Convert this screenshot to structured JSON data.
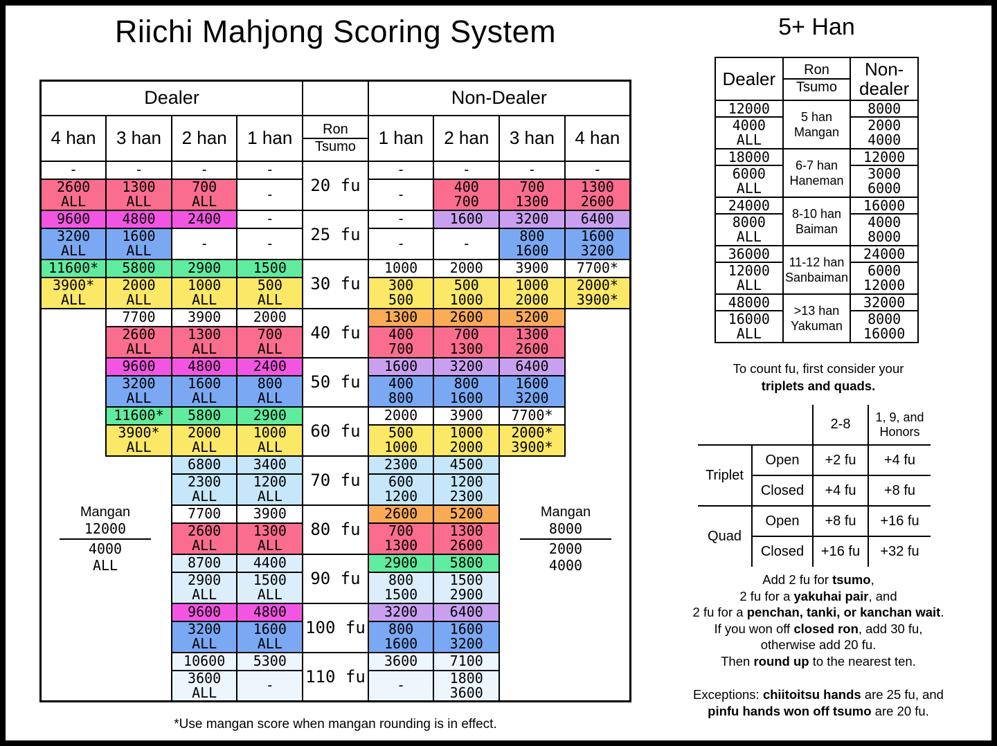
{
  "title": "Riichi Mahjong Scoring System",
  "footnote": "*Use mangan score when mangan rounding is in effect.",
  "colors": {
    "pink": "#FA6D8E",
    "magenta": "#F355E3",
    "blue": "#7AA8F3",
    "green": "#5FEC9E",
    "yellow": "#FAE866",
    "purple": "#C9A0F0",
    "orange": "#FAAB55",
    "lblue1": "#C6E6FA",
    "lblue2": "#DCEEFB",
    "lblue3": "#EDF5FD"
  },
  "main_table": {
    "dealer_header": "Dealer",
    "nondealer_header": "Non-Dealer",
    "ron_label": "Ron",
    "tsumo_label": "Tsumo",
    "dealer_cols": [
      "4 han",
      "3 han",
      "2 han",
      "1 han"
    ],
    "nondealer_cols": [
      "1 han",
      "2 han",
      "3 han",
      "4 han"
    ],
    "dealer_mangan": {
      "title": "Mangan",
      "ron": "12000",
      "t1": "4000",
      "t2": "ALL"
    },
    "nd_mangan": {
      "title": "Mangan",
      "ron": "8000",
      "t1": "2000",
      "t2": "4000"
    },
    "blocks": [
      {
        "fu": "20 fu",
        "d_ron": [
          {
            "t": "-"
          },
          {
            "t": "-"
          },
          {
            "t": "-"
          },
          {
            "t": "-"
          }
        ],
        "d_tsu": [
          {
            "t": "2600\nALL",
            "c": "pink"
          },
          {
            "t": "1300\nALL",
            "c": "pink"
          },
          {
            "t": "700\nALL",
            "c": "pink"
          },
          {
            "t": "-"
          }
        ],
        "n_ron": [
          {
            "t": "-"
          },
          {
            "t": "-"
          },
          {
            "t": "-"
          },
          {
            "t": "-"
          }
        ],
        "n_tsu": [
          {
            "t": "-"
          },
          {
            "t": "400\n700",
            "c": "pink"
          },
          {
            "t": "700\n1300",
            "c": "pink"
          },
          {
            "t": "1300\n2600",
            "c": "pink"
          }
        ]
      },
      {
        "fu": "25 fu",
        "d_ron": [
          {
            "t": "9600",
            "c": "magenta"
          },
          {
            "t": "4800",
            "c": "magenta"
          },
          {
            "t": "2400",
            "c": "magenta"
          },
          {
            "t": "-"
          }
        ],
        "d_tsu": [
          {
            "t": "3200\nALL",
            "c": "blue"
          },
          {
            "t": "1600\nALL",
            "c": "blue"
          },
          {
            "t": "-"
          },
          {
            "t": "-"
          }
        ],
        "n_ron": [
          {
            "t": "-"
          },
          {
            "t": "1600",
            "c": "purple"
          },
          {
            "t": "3200",
            "c": "purple"
          },
          {
            "t": "6400",
            "c": "purple"
          }
        ],
        "n_tsu": [
          {
            "t": "-"
          },
          {
            "t": "-"
          },
          {
            "t": "800\n1600",
            "c": "blue"
          },
          {
            "t": "1600\n3200",
            "c": "blue"
          }
        ]
      },
      {
        "fu": "30 fu",
        "d_ron": [
          {
            "t": "11600*",
            "c": "green"
          },
          {
            "t": "5800",
            "c": "green"
          },
          {
            "t": "2900",
            "c": "green"
          },
          {
            "t": "1500",
            "c": "green"
          }
        ],
        "d_tsu": [
          {
            "t": "3900*\nALL",
            "c": "yellow"
          },
          {
            "t": "2000\nALL",
            "c": "yellow"
          },
          {
            "t": "1000\nALL",
            "c": "yellow"
          },
          {
            "t": "500\nALL",
            "c": "yellow"
          }
        ],
        "n_ron": [
          {
            "t": "1000"
          },
          {
            "t": "2000"
          },
          {
            "t": "3900"
          },
          {
            "t": "7700*"
          }
        ],
        "n_tsu": [
          {
            "t": "300\n500",
            "c": "yellow"
          },
          {
            "t": "500\n1000",
            "c": "yellow"
          },
          {
            "t": "1000\n2000",
            "c": "yellow"
          },
          {
            "t": "2000*\n3900*",
            "c": "yellow"
          }
        ]
      },
      {
        "fu": "40 fu",
        "d_ron": [
          {
            "t": "7700"
          },
          {
            "t": "3900"
          },
          {
            "t": "2000"
          }
        ],
        "d_tsu": [
          {
            "t": "2600\nALL",
            "c": "pink"
          },
          {
            "t": "1300\nALL",
            "c": "pink"
          },
          {
            "t": "700\nALL",
            "c": "pink"
          }
        ],
        "n_ron": [
          {
            "t": "1300",
            "c": "orange"
          },
          {
            "t": "2600",
            "c": "orange"
          },
          {
            "t": "5200",
            "c": "orange"
          }
        ],
        "n_tsu": [
          {
            "t": "400\n700",
            "c": "pink"
          },
          {
            "t": "700\n1300",
            "c": "pink"
          },
          {
            "t": "1300\n2600",
            "c": "pink"
          }
        ]
      },
      {
        "fu": "50 fu",
        "d_ron": [
          {
            "t": "9600",
            "c": "magenta"
          },
          {
            "t": "4800",
            "c": "magenta"
          },
          {
            "t": "2400",
            "c": "magenta"
          }
        ],
        "d_tsu": [
          {
            "t": "3200\nALL",
            "c": "blue"
          },
          {
            "t": "1600\nALL",
            "c": "blue"
          },
          {
            "t": "800\nALL",
            "c": "blue"
          }
        ],
        "n_ron": [
          {
            "t": "1600",
            "c": "purple"
          },
          {
            "t": "3200",
            "c": "purple"
          },
          {
            "t": "6400",
            "c": "purple"
          }
        ],
        "n_tsu": [
          {
            "t": "400\n800",
            "c": "blue"
          },
          {
            "t": "800\n1600",
            "c": "blue"
          },
          {
            "t": "1600\n3200",
            "c": "blue"
          }
        ]
      },
      {
        "fu": "60 fu",
        "d_ron": [
          {
            "t": "11600*",
            "c": "green"
          },
          {
            "t": "5800",
            "c": "green"
          },
          {
            "t": "2900",
            "c": "green"
          }
        ],
        "d_tsu": [
          {
            "t": "3900*\nALL",
            "c": "yellow"
          },
          {
            "t": "2000\nALL",
            "c": "yellow"
          },
          {
            "t": "1000\nALL",
            "c": "yellow"
          }
        ],
        "n_ron": [
          {
            "t": "2000"
          },
          {
            "t": "3900"
          },
          {
            "t": "7700*"
          }
        ],
        "n_tsu": [
          {
            "t": "500\n1000",
            "c": "yellow"
          },
          {
            "t": "1000\n2000",
            "c": "yellow"
          },
          {
            "t": "2000*\n3900*",
            "c": "yellow"
          }
        ]
      },
      {
        "fu": "70 fu",
        "d_ron": [
          {
            "t": "6800",
            "c": "lblue1"
          },
          {
            "t": "3400",
            "c": "lblue1"
          }
        ],
        "d_tsu": [
          {
            "t": "2300\nALL",
            "c": "lblue1"
          },
          {
            "t": "1200\nALL",
            "c": "lblue1"
          }
        ],
        "n_ron": [
          {
            "t": "2300",
            "c": "lblue1"
          },
          {
            "t": "4500",
            "c": "lblue1"
          }
        ],
        "n_tsu": [
          {
            "t": "600\n1200",
            "c": "lblue1"
          },
          {
            "t": "1200\n2300",
            "c": "lblue1"
          }
        ]
      },
      {
        "fu": "80 fu",
        "d_ron": [
          {
            "t": "7700"
          },
          {
            "t": "3900"
          }
        ],
        "d_tsu": [
          {
            "t": "2600\nALL",
            "c": "pink"
          },
          {
            "t": "1300\nALL",
            "c": "pink"
          }
        ],
        "n_ron": [
          {
            "t": "2600",
            "c": "orange"
          },
          {
            "t": "5200",
            "c": "orange"
          }
        ],
        "n_tsu": [
          {
            "t": "700\n1300",
            "c": "pink"
          },
          {
            "t": "1300\n2600",
            "c": "pink"
          }
        ]
      },
      {
        "fu": "90 fu",
        "d_ron": [
          {
            "t": "8700",
            "c": "lblue2"
          },
          {
            "t": "4400",
            "c": "lblue2"
          }
        ],
        "d_tsu": [
          {
            "t": "2900\nALL",
            "c": "lblue2"
          },
          {
            "t": "1500\nALL",
            "c": "lblue2"
          }
        ],
        "n_ron": [
          {
            "t": "2900",
            "c": "green"
          },
          {
            "t": "5800",
            "c": "green"
          }
        ],
        "n_tsu": [
          {
            "t": "800\n1500",
            "c": "lblue2"
          },
          {
            "t": "1500\n2900",
            "c": "lblue2"
          }
        ]
      },
      {
        "fu": "100 fu",
        "d_ron": [
          {
            "t": "9600",
            "c": "magenta"
          },
          {
            "t": "4800",
            "c": "magenta"
          }
        ],
        "d_tsu": [
          {
            "t": "3200\nALL",
            "c": "blue"
          },
          {
            "t": "1600\nALL",
            "c": "blue"
          }
        ],
        "n_ron": [
          {
            "t": "3200",
            "c": "purple"
          },
          {
            "t": "6400",
            "c": "purple"
          }
        ],
        "n_tsu": [
          {
            "t": "800\n1600",
            "c": "blue"
          },
          {
            "t": "1600\n3200",
            "c": "blue"
          }
        ]
      },
      {
        "fu": "110 fu",
        "d_ron": [
          {
            "t": "10600",
            "c": "lblue3"
          },
          {
            "t": "5300",
            "c": "lblue3"
          }
        ],
        "d_tsu": [
          {
            "t": "3600\nALL",
            "c": "lblue3"
          },
          {
            "t": "-",
            "c": "lblue3"
          }
        ],
        "n_ron": [
          {
            "t": "3600",
            "c": "lblue3"
          },
          {
            "t": "7100",
            "c": "lblue3"
          }
        ],
        "n_tsu": [
          {
            "t": "-",
            "c": "lblue3"
          },
          {
            "t": "1800\n3600",
            "c": "lblue3"
          }
        ]
      }
    ]
  },
  "han5": {
    "title": "5+ Han",
    "dealer_header": "Dealer",
    "ron_label": "Ron",
    "tsumo_label": "Tsumo",
    "nondealer_header": "Non-dealer",
    "groups": [
      {
        "label": "5 han\nMangan",
        "d_ron": "12000",
        "d_tsu": "4000\nALL",
        "n_ron": "8000",
        "n_tsu": "2000\n4000"
      },
      {
        "label": "6-7 han\nHaneman",
        "d_ron": "18000",
        "d_tsu": "6000\nALL",
        "n_ron": "12000",
        "n_tsu": "3000\n6000"
      },
      {
        "label": "8-10 han\nBaiman",
        "d_ron": "24000",
        "d_tsu": "8000\nALL",
        "n_ron": "16000",
        "n_tsu": "4000\n8000"
      },
      {
        "label": "11-12 han\nSanbaiman",
        "d_ron": "36000",
        "d_tsu": "12000\nALL",
        "n_ron": "24000",
        "n_tsu": "6000\n12000"
      },
      {
        "label": ">13 han\nYakuman",
        "d_ron": "48000",
        "d_tsu": "16000\nALL",
        "n_ron": "32000",
        "n_tsu": "8000\n16000"
      }
    ]
  },
  "fu_guide": {
    "intro": [
      [
        {
          "t": "To count fu, first consider your"
        }
      ],
      [
        {
          "t": "triplets and quads.",
          "b": true
        }
      ]
    ],
    "col_headers": [
      "2-8",
      "1, 9, and\nHonors"
    ],
    "groups": [
      {
        "label": "Triplet",
        "rows": [
          {
            "label": "Open",
            "v": [
              "+2 fu",
              "+4 fu"
            ]
          },
          {
            "label": "Closed",
            "v": [
              "+4 fu",
              "+8 fu"
            ]
          }
        ]
      },
      {
        "label": "Quad",
        "rows": [
          {
            "label": "Open",
            "v": [
              "+8 fu",
              "+16 fu"
            ]
          },
          {
            "label": "Closed",
            "v": [
              "+16 fu",
              "+32 fu"
            ]
          }
        ]
      }
    ]
  },
  "notes": {
    "lines": [
      [
        {
          "t": "Add 2 fu for "
        },
        {
          "t": "tsumo",
          "b": true
        },
        {
          "t": ","
        }
      ],
      [
        {
          "t": "2 fu for a "
        },
        {
          "t": "yakuhai pair",
          "b": true
        },
        {
          "t": ", and"
        }
      ],
      [
        {
          "t": "2 fu for a "
        },
        {
          "t": "penchan, tanki, or kanchan wait",
          "b": true
        },
        {
          "t": "."
        }
      ],
      [
        {
          "t": "If you won off "
        },
        {
          "t": "closed ron",
          "b": true
        },
        {
          "t": ", add 30 fu,"
        }
      ],
      [
        {
          "t": "otherwise add 20 fu."
        }
      ],
      [
        {
          "t": "Then "
        },
        {
          "t": "round up",
          "b": true
        },
        {
          "t": " to the nearest ten."
        }
      ]
    ],
    "exceptions": [
      [
        {
          "t": "Exceptions: "
        },
        {
          "t": "chiitoitsu hands",
          "b": true
        },
        {
          "t": " are 25 fu, and"
        }
      ],
      [
        {
          "t": "pinfu hands won off tsumo",
          "b": true
        },
        {
          "t": " are 20 fu."
        }
      ]
    ]
  }
}
